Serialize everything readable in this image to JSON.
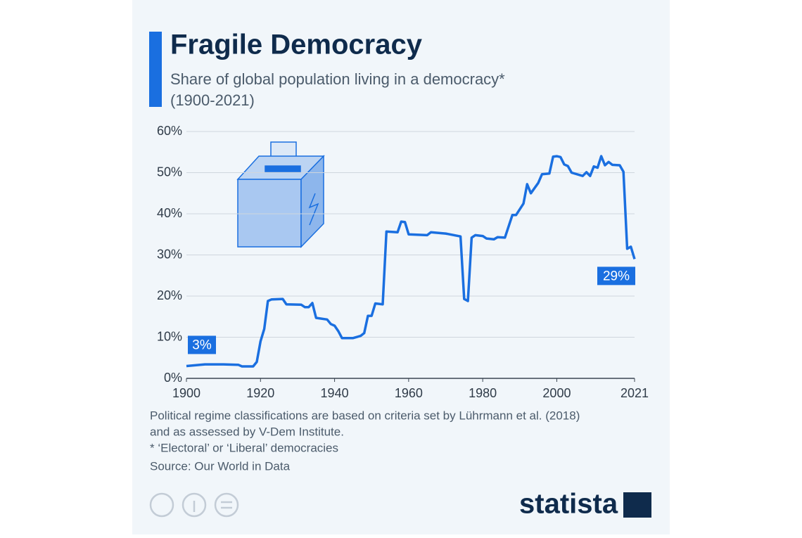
{
  "chart_data": {
    "type": "line",
    "title": "Fragile Democracy",
    "subtitle": [
      "Share of global population living in a democracy*",
      "(1900-2021)"
    ],
    "x": [
      1900,
      1905,
      1910,
      1914,
      1915,
      1918,
      1919,
      1920,
      1921,
      1922,
      1923,
      1926,
      1927,
      1931,
      1932,
      1933,
      1934,
      1935,
      1938,
      1939,
      1940,
      1941,
      1942,
      1945,
      1947,
      1948,
      1949,
      1950,
      1951,
      1953,
      1954,
      1957,
      1958,
      1959,
      1960,
      1965,
      1966,
      1970,
      1974,
      1975,
      1976,
      1977,
      1978,
      1980,
      1981,
      1983,
      1984,
      1986,
      1988,
      1989,
      1991,
      1992,
      1993,
      1995,
      1996,
      1998,
      1999,
      2000,
      2001,
      2002,
      2003,
      2004,
      2007,
      2008,
      2009,
      2010,
      2011,
      2012,
      2013,
      2014,
      2015,
      2017,
      2018,
      2019,
      2020,
      2021
    ],
    "series": [
      {
        "name": "Share of global population living in a democracy",
        "color": "#1a6fe0",
        "values": [
          3,
          3.4,
          3.4,
          3.3,
          2.9,
          2.9,
          4,
          9,
          12,
          18.8,
          19.2,
          19.3,
          18,
          17.9,
          17.3,
          17.3,
          18.3,
          14.7,
          14.3,
          13.2,
          12.8,
          11.5,
          9.8,
          9.8,
          10.3,
          11,
          15.2,
          15.2,
          18.2,
          18,
          35.7,
          35.5,
          38.1,
          38,
          35,
          34.8,
          35.5,
          35.2,
          34.5,
          19.3,
          18.8,
          34.2,
          34.8,
          34.6,
          34,
          33.8,
          34.3,
          34.2,
          39.7,
          39.7,
          42.5,
          47.2,
          45,
          47.5,
          49.6,
          49.8,
          53.9,
          54,
          53.8,
          52,
          51.6,
          50,
          49.2,
          50.1,
          49.2,
          51.5,
          51.2,
          54,
          51.8,
          52.6,
          51.9,
          51.8,
          50.2,
          31.5,
          32,
          29
        ],
        "value_labels": [
          "3%",
          null,
          null,
          null,
          null,
          null,
          null,
          null,
          null,
          null,
          null,
          null,
          null,
          null,
          null,
          null,
          null,
          null,
          null,
          null,
          null,
          null,
          null,
          null,
          null,
          null,
          null,
          null,
          null,
          null,
          null,
          null,
          null,
          null,
          null,
          null,
          null,
          null,
          null,
          null,
          null,
          null,
          null,
          null,
          null,
          null,
          null,
          null,
          null,
          null,
          null,
          null,
          null,
          null,
          null,
          null,
          null,
          null,
          null,
          null,
          null,
          null,
          null,
          null,
          null,
          null,
          null,
          null,
          null,
          null,
          null,
          null,
          null,
          null,
          null,
          "29%"
        ]
      }
    ],
    "xlim": [
      1900,
      2021
    ],
    "xticks": [
      1900,
      1920,
      1940,
      1960,
      1980,
      2000,
      2021
    ],
    "ylim": [
      0,
      60
    ],
    "yticks": [
      {
        "value": 0,
        "label": "0%"
      },
      {
        "value": 10,
        "label": "10%"
      },
      {
        "value": 20,
        "label": "20%"
      },
      {
        "value": 30,
        "label": "30%"
      },
      {
        "value": 40,
        "label": "40%"
      },
      {
        "value": 50,
        "label": "50%"
      },
      {
        "value": 60,
        "label": "60%"
      }
    ],
    "grid": true,
    "notes": [
      "Political regime classifications are based on criteria set by Lührmann et al. (2018)",
      "and as assessed by V-Dem Institute.",
      "* ‘Electoral’ or ‘Liberal’ democracies"
    ],
    "source": "Source: Our World in Data",
    "logo": "statista"
  }
}
